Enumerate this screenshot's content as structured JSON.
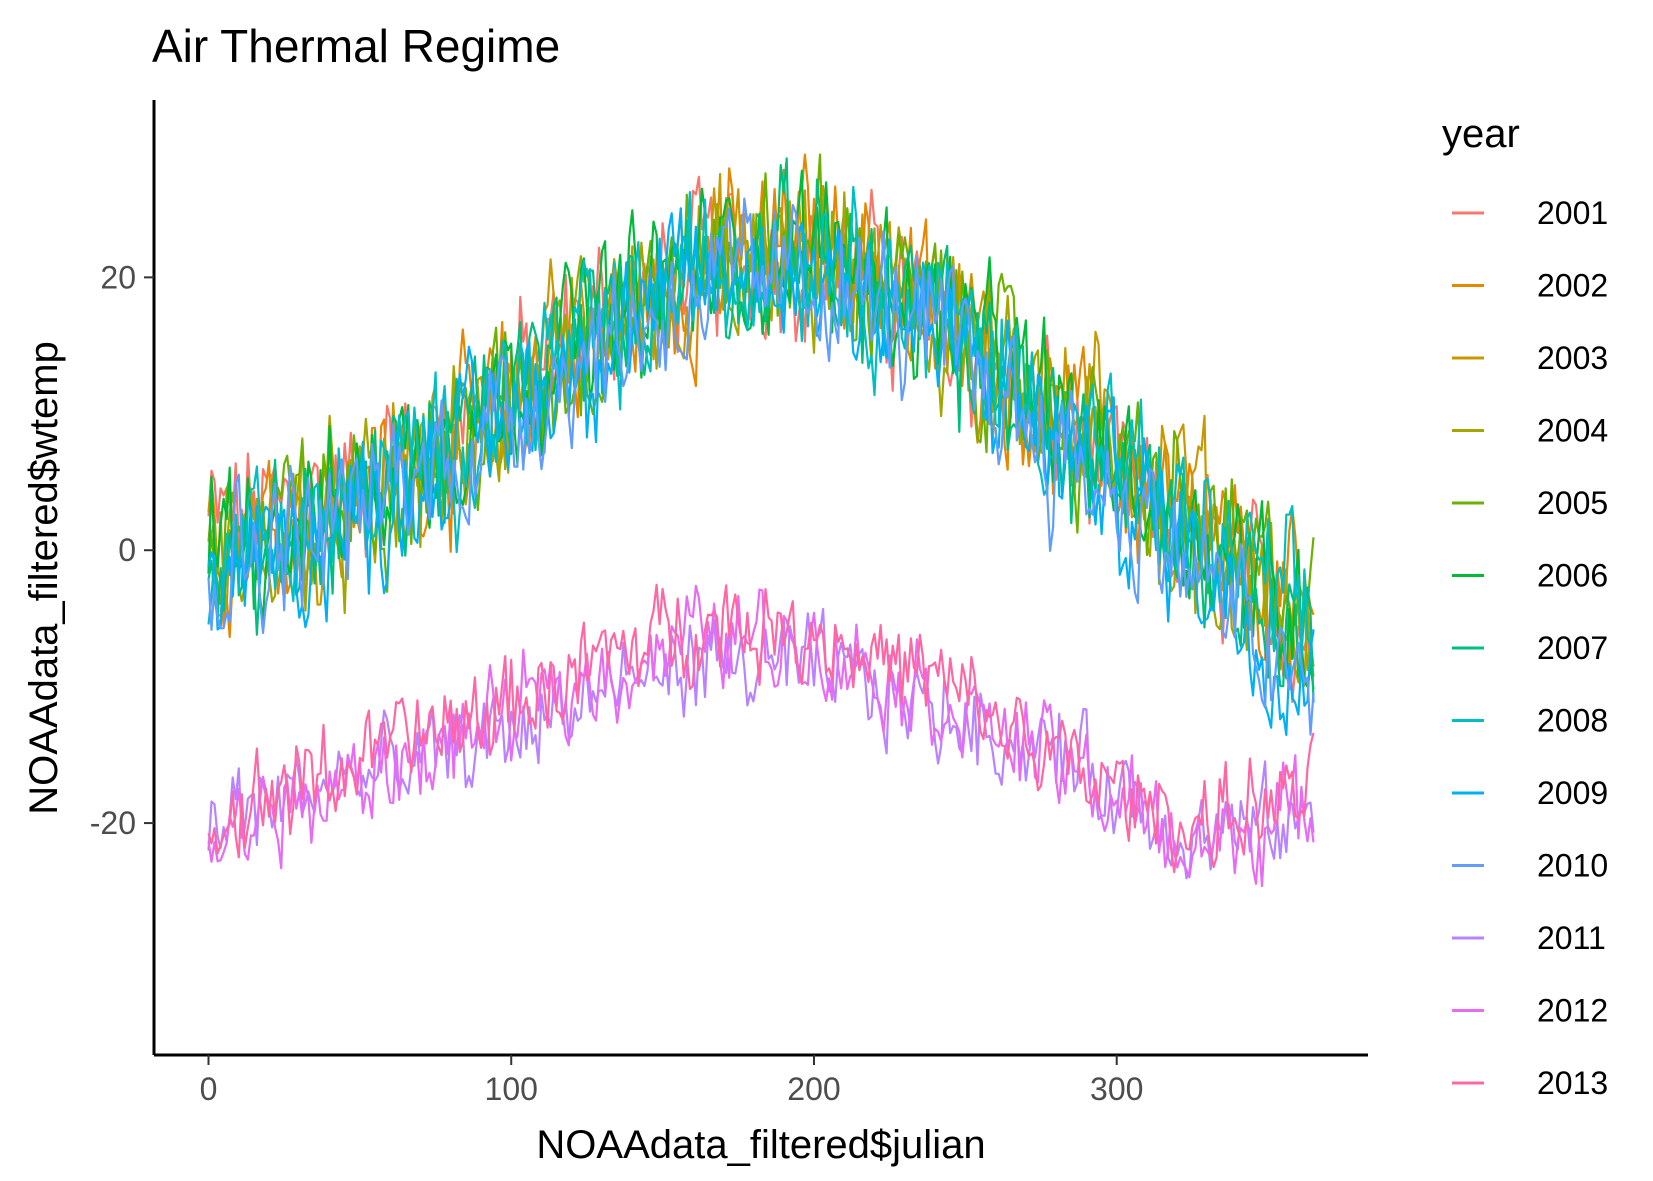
{
  "chart_data": {
    "type": "line",
    "title": "Air Thermal Regime",
    "xlabel": "NOAAdata_filtered$julian",
    "ylabel": "NOAAdata_filtered$wtemp",
    "xlim": [
      -18,
      383
    ],
    "ylim": [
      -37,
      33
    ],
    "x_ticks": [
      0,
      100,
      200,
      300
    ],
    "y_ticks": [
      -20,
      0,
      20
    ],
    "x_tick_labels": [
      "0",
      "100",
      "200",
      "300"
    ],
    "y_tick_labels": [
      "-20",
      "0",
      "20"
    ],
    "grid": false,
    "legend": {
      "title": "year",
      "position": "right"
    },
    "series": [
      {
        "name": "2001",
        "color": "#F8766D",
        "profile": "warm",
        "values": [
          2,
          4,
          9,
          16,
          21,
          22,
          16,
          8,
          0,
          -6
        ]
      },
      {
        "name": "2002",
        "color": "#E58700",
        "profile": "warm",
        "values": [
          1,
          3,
          8,
          15,
          20,
          24,
          17,
          9,
          1,
          -5
        ]
      },
      {
        "name": "2003",
        "color": "#C99800",
        "profile": "warm",
        "values": [
          0,
          2,
          8,
          15,
          21,
          22,
          18,
          10,
          5,
          -8
        ]
      },
      {
        "name": "2004",
        "color": "#A3A500",
        "profile": "warm",
        "values": [
          -1,
          2,
          7,
          14,
          20,
          21,
          16,
          8,
          1,
          -7
        ]
      },
      {
        "name": "2005",
        "color": "#6BB100",
        "profile": "warm",
        "values": [
          0,
          3,
          8,
          14,
          21,
          22,
          17,
          9,
          2,
          -4
        ]
      },
      {
        "name": "2006",
        "color": "#00BA38",
        "profile": "warm",
        "values": [
          1,
          3,
          9,
          16,
          21,
          22,
          17,
          9,
          2,
          -6
        ]
      },
      {
        "name": "2007",
        "color": "#00BF7D",
        "profile": "warm",
        "values": [
          -1,
          2,
          8,
          15,
          21,
          22,
          16,
          8,
          1,
          -8
        ]
      },
      {
        "name": "2008",
        "color": "#00BFC4",
        "profile": "warm",
        "values": [
          0,
          2,
          8,
          15,
          20,
          22,
          17,
          9,
          2,
          -6
        ]
      },
      {
        "name": "2009",
        "color": "#00B0F6",
        "profile": "warm",
        "values": [
          -2,
          1,
          7,
          14,
          20,
          21,
          15,
          7,
          0,
          -10
        ]
      },
      {
        "name": "2010",
        "color": "#619CFF",
        "profile": "warm",
        "values": [
          -1,
          2,
          7,
          14,
          19,
          20,
          15,
          7,
          -1,
          -12
        ]
      },
      {
        "name": "2011",
        "color": "#B983FF",
        "profile": "cold",
        "values": [
          -20,
          -17,
          -15,
          -11,
          -8,
          -9,
          -12,
          -15,
          -21,
          -20
        ]
      },
      {
        "name": "2012",
        "color": "#E76BF3",
        "profile": "cold",
        "values": [
          -21,
          -18,
          -14,
          -10,
          -6,
          -7,
          -11,
          -16,
          -22,
          -19
        ]
      },
      {
        "name": "2013",
        "color": "#FF67A4",
        "profile": "cold",
        "values": [
          -20,
          -16,
          -13,
          -9,
          -5,
          -6,
          -10,
          -16,
          -20,
          -18
        ]
      }
    ]
  }
}
